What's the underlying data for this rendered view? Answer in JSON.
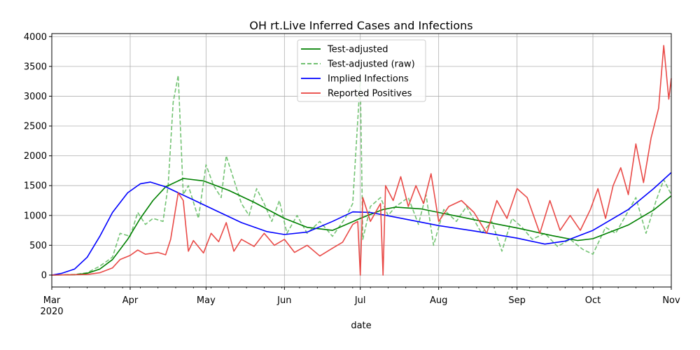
{
  "chart_data": {
    "type": "line",
    "title": "OH rt.Live Inferred Cases and Infections",
    "xlabel": "date",
    "ylabel": "",
    "xlim": [
      "2020-03-01",
      "2020-11-01"
    ],
    "ylim": [
      -200,
      4050
    ],
    "grid": true,
    "legend_position": "top-center",
    "x_ticks": [
      {
        "date": "2020-03-01",
        "label": "Mar",
        "sublabel": "2020"
      },
      {
        "date": "2020-04-01",
        "label": "Apr"
      },
      {
        "date": "2020-05-01",
        "label": "May"
      },
      {
        "date": "2020-06-01",
        "label": "Jun"
      },
      {
        "date": "2020-07-01",
        "label": "Jul"
      },
      {
        "date": "2020-08-01",
        "label": "Aug"
      },
      {
        "date": "2020-09-01",
        "label": "Sep"
      },
      {
        "date": "2020-10-01",
        "label": "Oct"
      },
      {
        "date": "2020-11-01",
        "label": "Nov"
      }
    ],
    "y_ticks": [
      0,
      500,
      1000,
      1500,
      2000,
      2500,
      3000,
      3500,
      4000
    ],
    "series": [
      {
        "name": "Test-adjusted",
        "color": "#008000",
        "style": "solid",
        "points": [
          [
            "2020-03-01",
            0
          ],
          [
            "2020-03-10",
            5
          ],
          [
            "2020-03-15",
            30
          ],
          [
            "2020-03-20",
            100
          ],
          [
            "2020-03-25",
            260
          ],
          [
            "2020-03-31",
            600
          ],
          [
            "2020-04-05",
            950
          ],
          [
            "2020-04-10",
            1250
          ],
          [
            "2020-04-15",
            1480
          ],
          [
            "2020-04-22",
            1620
          ],
          [
            "2020-04-30",
            1580
          ],
          [
            "2020-05-10",
            1420
          ],
          [
            "2020-05-20",
            1220
          ],
          [
            "2020-06-01",
            950
          ],
          [
            "2020-06-10",
            800
          ],
          [
            "2020-06-20",
            750
          ],
          [
            "2020-07-01",
            950
          ],
          [
            "2020-07-10",
            1100
          ],
          [
            "2020-07-15",
            1140
          ],
          [
            "2020-07-25",
            1110
          ],
          [
            "2020-08-01",
            1050
          ],
          [
            "2020-08-15",
            930
          ],
          [
            "2020-09-01",
            790
          ],
          [
            "2020-09-15",
            660
          ],
          [
            "2020-09-25",
            580
          ],
          [
            "2020-10-01",
            610
          ],
          [
            "2020-10-15",
            840
          ],
          [
            "2020-10-25",
            1090
          ],
          [
            "2020-11-01",
            1330
          ]
        ]
      },
      {
        "name": "Test-adjusted (raw)",
        "color": "#5cb85c",
        "style": "dashed",
        "points": [
          [
            "2020-03-01",
            0
          ],
          [
            "2020-03-10",
            10
          ],
          [
            "2020-03-15",
            40
          ],
          [
            "2020-03-20",
            150
          ],
          [
            "2020-03-25",
            300
          ],
          [
            "2020-03-28",
            700
          ],
          [
            "2020-04-01",
            650
          ],
          [
            "2020-04-04",
            1050
          ],
          [
            "2020-04-07",
            850
          ],
          [
            "2020-04-10",
            950
          ],
          [
            "2020-04-14",
            900
          ],
          [
            "2020-04-16",
            1500
          ],
          [
            "2020-04-18",
            2900
          ],
          [
            "2020-04-20",
            3350
          ],
          [
            "2020-04-22",
            1350
          ],
          [
            "2020-04-24",
            1500
          ],
          [
            "2020-04-28",
            950
          ],
          [
            "2020-05-01",
            1850
          ],
          [
            "2020-05-04",
            1500
          ],
          [
            "2020-05-07",
            1300
          ],
          [
            "2020-05-09",
            2000
          ],
          [
            "2020-05-12",
            1600
          ],
          [
            "2020-05-15",
            1200
          ],
          [
            "2020-05-18",
            1000
          ],
          [
            "2020-05-21",
            1450
          ],
          [
            "2020-05-24",
            1200
          ],
          [
            "2020-05-27",
            900
          ],
          [
            "2020-05-30",
            1250
          ],
          [
            "2020-06-02",
            700
          ],
          [
            "2020-06-06",
            1000
          ],
          [
            "2020-06-10",
            700
          ],
          [
            "2020-06-15",
            900
          ],
          [
            "2020-06-20",
            650
          ],
          [
            "2020-06-25",
            950
          ],
          [
            "2020-06-28",
            1200
          ],
          [
            "2020-07-01",
            3300
          ],
          [
            "2020-07-02",
            600
          ],
          [
            "2020-07-05",
            1150
          ],
          [
            "2020-07-09",
            1300
          ],
          [
            "2020-07-12",
            1000
          ],
          [
            "2020-07-15",
            1150
          ],
          [
            "2020-07-20",
            1300
          ],
          [
            "2020-07-24",
            850
          ],
          [
            "2020-07-27",
            1350
          ],
          [
            "2020-07-30",
            500
          ],
          [
            "2020-08-03",
            1100
          ],
          [
            "2020-08-08",
            900
          ],
          [
            "2020-08-12",
            1150
          ],
          [
            "2020-08-18",
            700
          ],
          [
            "2020-08-22",
            900
          ],
          [
            "2020-08-26",
            400
          ],
          [
            "2020-08-30",
            950
          ],
          [
            "2020-09-03",
            800
          ],
          [
            "2020-09-07",
            600
          ],
          [
            "2020-09-12",
            700
          ],
          [
            "2020-09-17",
            480
          ],
          [
            "2020-09-22",
            600
          ],
          [
            "2020-09-27",
            430
          ],
          [
            "2020-10-01",
            350
          ],
          [
            "2020-10-06",
            800
          ],
          [
            "2020-10-10",
            700
          ],
          [
            "2020-10-14",
            1000
          ],
          [
            "2020-10-18",
            1300
          ],
          [
            "2020-10-22",
            700
          ],
          [
            "2020-10-26",
            1250
          ],
          [
            "2020-10-29",
            1600
          ],
          [
            "2020-11-01",
            1350
          ]
        ]
      },
      {
        "name": "Implied Infections",
        "color": "#0000ff",
        "style": "solid",
        "points": [
          [
            "2020-03-01",
            0
          ],
          [
            "2020-03-05",
            30
          ],
          [
            "2020-03-10",
            100
          ],
          [
            "2020-03-15",
            300
          ],
          [
            "2020-03-20",
            650
          ],
          [
            "2020-03-25",
            1050
          ],
          [
            "2020-03-31",
            1380
          ],
          [
            "2020-04-05",
            1530
          ],
          [
            "2020-04-09",
            1560
          ],
          [
            "2020-04-15",
            1480
          ],
          [
            "2020-04-25",
            1280
          ],
          [
            "2020-05-05",
            1080
          ],
          [
            "2020-05-15",
            880
          ],
          [
            "2020-05-25",
            730
          ],
          [
            "2020-06-01",
            680
          ],
          [
            "2020-06-10",
            720
          ],
          [
            "2020-06-20",
            900
          ],
          [
            "2020-06-28",
            1060
          ],
          [
            "2020-07-05",
            1050
          ],
          [
            "2020-07-15",
            970
          ],
          [
            "2020-08-01",
            830
          ],
          [
            "2020-08-15",
            740
          ],
          [
            "2020-09-01",
            620
          ],
          [
            "2020-09-12",
            520
          ],
          [
            "2020-09-20",
            570
          ],
          [
            "2020-10-01",
            750
          ],
          [
            "2020-10-15",
            1100
          ],
          [
            "2020-10-25",
            1450
          ],
          [
            "2020-11-01",
            1720
          ]
        ]
      },
      {
        "name": "Reported Positives",
        "color": "#e8403d",
        "style": "solid",
        "points": [
          [
            "2020-03-01",
            0
          ],
          [
            "2020-03-15",
            10
          ],
          [
            "2020-03-20",
            40
          ],
          [
            "2020-03-25",
            120
          ],
          [
            "2020-03-28",
            260
          ],
          [
            "2020-04-01",
            330
          ],
          [
            "2020-04-04",
            420
          ],
          [
            "2020-04-07",
            350
          ],
          [
            "2020-04-12",
            380
          ],
          [
            "2020-04-15",
            340
          ],
          [
            "2020-04-17",
            600
          ],
          [
            "2020-04-20",
            1380
          ],
          [
            "2020-04-22",
            1250
          ],
          [
            "2020-04-24",
            400
          ],
          [
            "2020-04-26",
            580
          ],
          [
            "2020-04-30",
            370
          ],
          [
            "2020-05-03",
            700
          ],
          [
            "2020-05-06",
            560
          ],
          [
            "2020-05-09",
            880
          ],
          [
            "2020-05-12",
            400
          ],
          [
            "2020-05-15",
            600
          ],
          [
            "2020-05-20",
            480
          ],
          [
            "2020-05-24",
            700
          ],
          [
            "2020-05-28",
            500
          ],
          [
            "2020-06-01",
            600
          ],
          [
            "2020-06-05",
            380
          ],
          [
            "2020-06-10",
            500
          ],
          [
            "2020-06-15",
            320
          ],
          [
            "2020-06-20",
            450
          ],
          [
            "2020-06-24",
            550
          ],
          [
            "2020-06-28",
            850
          ],
          [
            "2020-06-30",
            900
          ],
          [
            "2020-07-01",
            0
          ],
          [
            "2020-07-02",
            1300
          ],
          [
            "2020-07-05",
            900
          ],
          [
            "2020-07-09",
            1200
          ],
          [
            "2020-07-10",
            0
          ],
          [
            "2020-07-11",
            1500
          ],
          [
            "2020-07-14",
            1250
          ],
          [
            "2020-07-17",
            1650
          ],
          [
            "2020-07-20",
            1150
          ],
          [
            "2020-07-23",
            1500
          ],
          [
            "2020-07-26",
            1200
          ],
          [
            "2020-07-29",
            1700
          ],
          [
            "2020-08-01",
            900
          ],
          [
            "2020-08-05",
            1150
          ],
          [
            "2020-08-10",
            1250
          ],
          [
            "2020-08-15",
            1050
          ],
          [
            "2020-08-20",
            700
          ],
          [
            "2020-08-24",
            1250
          ],
          [
            "2020-08-28",
            950
          ],
          [
            "2020-09-01",
            1450
          ],
          [
            "2020-09-05",
            1300
          ],
          [
            "2020-09-10",
            700
          ],
          [
            "2020-09-14",
            1250
          ],
          [
            "2020-09-18",
            750
          ],
          [
            "2020-09-22",
            1000
          ],
          [
            "2020-09-26",
            750
          ],
          [
            "2020-09-30",
            1100
          ],
          [
            "2020-10-03",
            1450
          ],
          [
            "2020-10-06",
            950
          ],
          [
            "2020-10-09",
            1500
          ],
          [
            "2020-10-12",
            1800
          ],
          [
            "2020-10-15",
            1350
          ],
          [
            "2020-10-18",
            2200
          ],
          [
            "2020-10-21",
            1550
          ],
          [
            "2020-10-24",
            2300
          ],
          [
            "2020-10-27",
            2800
          ],
          [
            "2020-10-29",
            3850
          ],
          [
            "2020-10-31",
            2950
          ],
          [
            "2020-11-01",
            3300
          ]
        ]
      }
    ]
  }
}
